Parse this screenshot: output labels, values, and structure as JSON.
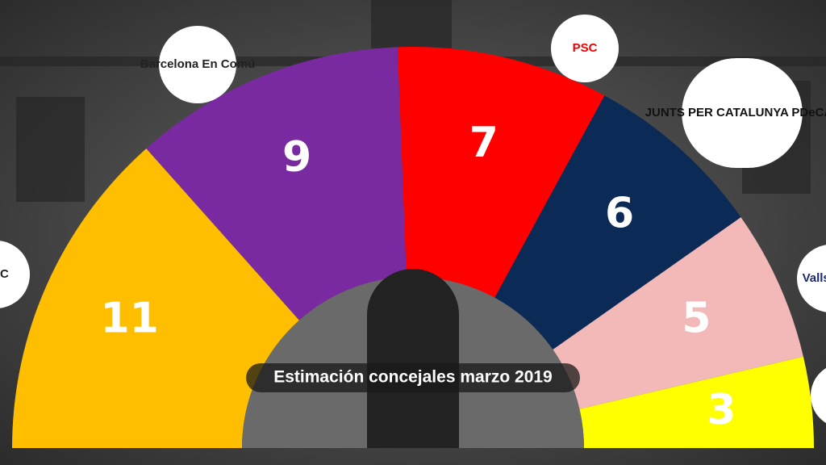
{
  "chart_data": {
    "type": "parliament",
    "title": "Estimación concejales marzo 2019",
    "categories": [
      "ERC",
      "Barcelona En Comú",
      "PSC",
      "JUNTS PER CATALUNYA PDeCAT",
      "Valls BCN",
      null
    ],
    "values": [
      11,
      9,
      7,
      6,
      5,
      3
    ],
    "colors": [
      "#ffbf00",
      "#7a2aa0",
      "#ff0000",
      "#0b2a55",
      "#f3b9b9",
      "#ffff00"
    ]
  }
}
